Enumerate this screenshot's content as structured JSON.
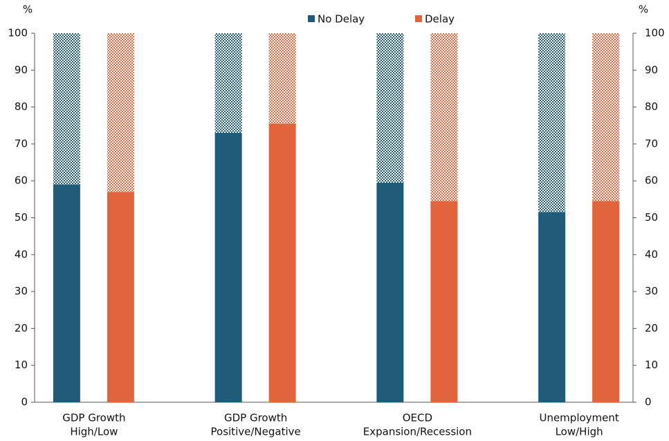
{
  "chart_data": {
    "type": "bar",
    "y_unit": "%",
    "y2_unit": "%",
    "categories": [
      [
        "GDP Growth",
        "High/Low"
      ],
      [
        "GDP Growth",
        "Positive/Negative"
      ],
      [
        "OECD",
        "Expansion/Recession"
      ],
      [
        "Unemployment",
        "Low/High"
      ]
    ],
    "series": [
      {
        "name": "No Delay",
        "color": "#1f5c7a",
        "values": [
          59,
          73,
          59.5,
          51.5
        ],
        "patterned_values": [
          41,
          27,
          40.5,
          48.5
        ]
      },
      {
        "name": "Delay",
        "color": "#e2643c",
        "values": [
          57,
          75.5,
          54.5,
          54.5
        ],
        "patterned_values": [
          43,
          24.5,
          45.5,
          45.5
        ]
      }
    ],
    "ylim": [
      0,
      100
    ],
    "yticks": [
      0,
      10,
      20,
      30,
      40,
      50,
      60,
      70,
      80,
      90,
      100
    ],
    "y2lim": [
      0,
      100
    ],
    "y2ticks": [
      0,
      10,
      20,
      30,
      40,
      50,
      60,
      70,
      80,
      90,
      100
    ],
    "grid": false,
    "legend": "top"
  }
}
